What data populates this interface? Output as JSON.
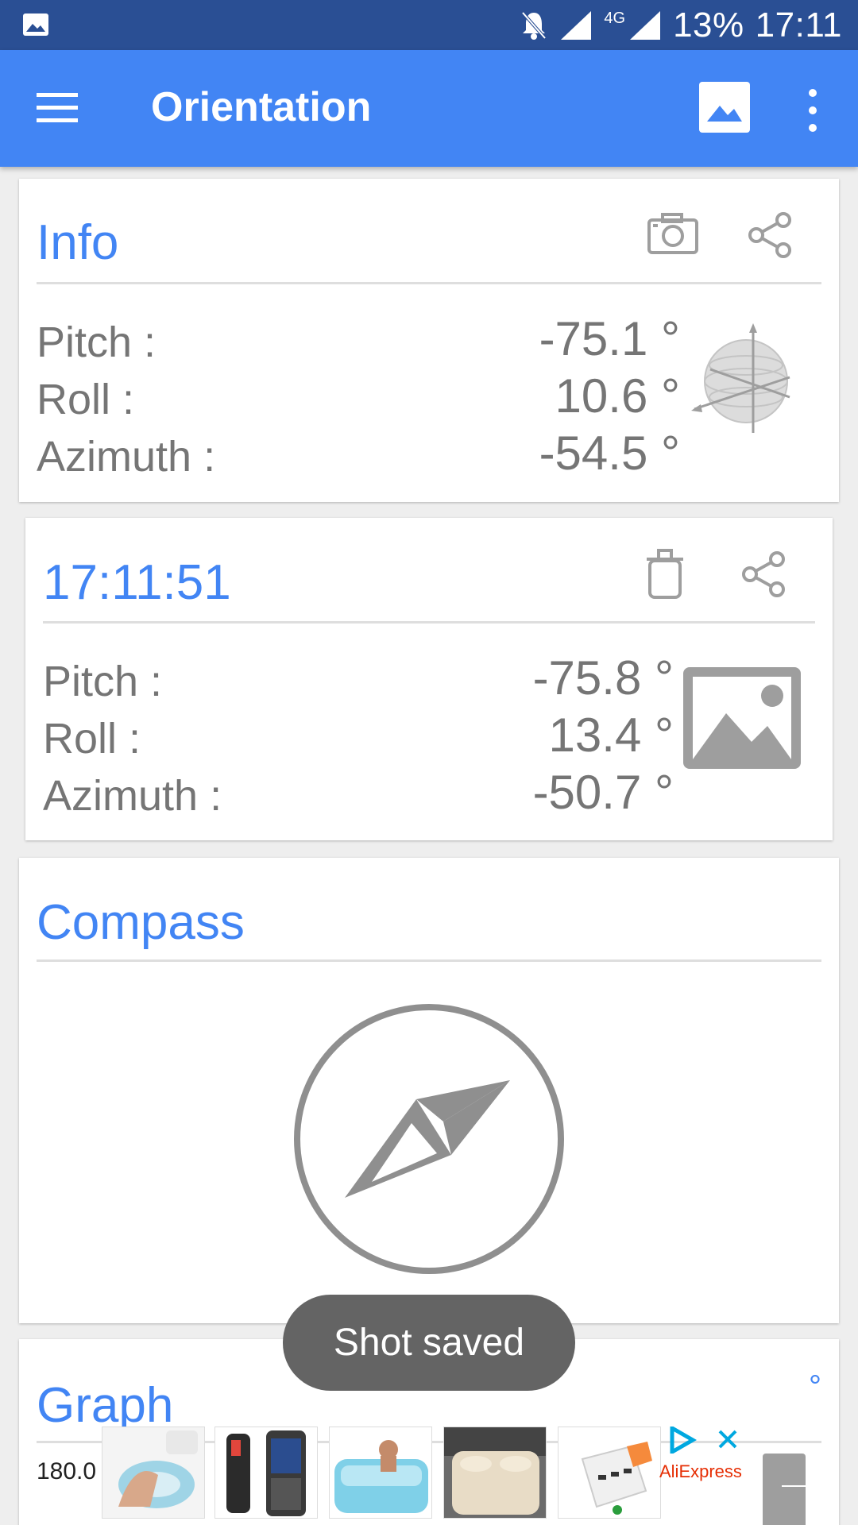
{
  "status_bar": {
    "battery": "13%",
    "time": "17:11",
    "network": "4G"
  },
  "app_bar": {
    "title": "Orientation"
  },
  "info_card": {
    "title": "Info",
    "labels": {
      "pitch": "Pitch :",
      "roll": "Roll :",
      "azimuth": "Azimuth :"
    },
    "values": {
      "pitch": "-75.1 °",
      "roll": "10.6 °",
      "azimuth": "-54.5 °"
    }
  },
  "shot_card": {
    "title": "17:11:51",
    "labels": {
      "pitch": "Pitch :",
      "roll": "Roll :",
      "azimuth": "Azimuth :"
    },
    "values": {
      "pitch": "-75.8 °",
      "roll": "13.4 °",
      "azimuth": "-50.7 °"
    }
  },
  "compass_card": {
    "title": "Compass"
  },
  "graph_card": {
    "title": "Graph",
    "unit": "°",
    "y_top_label": "180.0"
  },
  "toast": {
    "text": "Shot saved"
  },
  "ad": {
    "brand": "AliExpress"
  },
  "colors": {
    "status_bar": "#2a4f94",
    "app_bar": "#4285f4",
    "accent": "#4285f4",
    "icon_gray": "#9e9e9e"
  },
  "icons": [
    "image-icon",
    "mute-icon",
    "signal-icon",
    "menu-icon",
    "gallery-icon",
    "more-icon",
    "camera-icon",
    "share-icon",
    "trash-icon",
    "compass-icon"
  ]
}
